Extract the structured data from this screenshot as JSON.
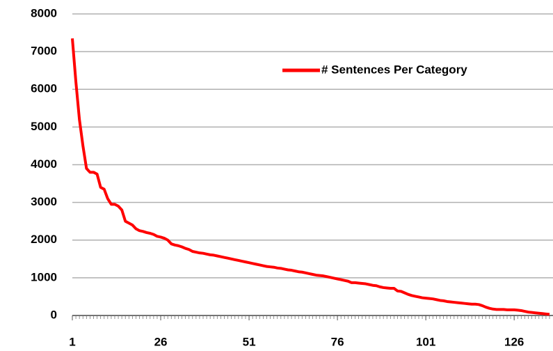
{
  "chart_data": {
    "type": "line",
    "x": [
      1,
      2,
      3,
      4,
      5,
      6,
      7,
      8,
      9,
      10,
      11,
      12,
      13,
      14,
      15,
      16,
      17,
      18,
      19,
      20,
      21,
      22,
      23,
      24,
      25,
      26,
      27,
      28,
      29,
      30,
      31,
      32,
      33,
      34,
      35,
      36,
      37,
      38,
      39,
      40,
      41,
      42,
      43,
      44,
      45,
      46,
      47,
      48,
      49,
      50,
      51,
      52,
      53,
      54,
      55,
      56,
      57,
      58,
      59,
      60,
      61,
      62,
      63,
      64,
      65,
      66,
      67,
      68,
      69,
      70,
      71,
      72,
      73,
      74,
      75,
      76,
      77,
      78,
      79,
      80,
      81,
      82,
      83,
      84,
      85,
      86,
      87,
      88,
      89,
      90,
      91,
      92,
      93,
      94,
      95,
      96,
      97,
      98,
      99,
      100,
      101,
      102,
      103,
      104,
      105,
      106,
      107,
      108,
      109,
      110,
      111,
      112,
      113,
      114,
      115,
      116,
      117,
      118,
      119,
      120,
      121,
      122,
      123,
      124,
      125,
      126,
      127,
      128,
      129,
      130,
      131,
      132,
      133,
      134,
      135,
      136
    ],
    "series": [
      {
        "name": "# Sentences Per Category",
        "color": "#ff0000",
        "values": [
          7350,
          6200,
          5200,
          4500,
          3900,
          3800,
          3800,
          3750,
          3400,
          3350,
          3100,
          2950,
          2950,
          2900,
          2800,
          2500,
          2450,
          2400,
          2300,
          2250,
          2230,
          2200,
          2180,
          2150,
          2100,
          2080,
          2050,
          2000,
          1900,
          1870,
          1850,
          1820,
          1780,
          1750,
          1700,
          1680,
          1660,
          1650,
          1630,
          1610,
          1600,
          1580,
          1560,
          1540,
          1520,
          1500,
          1480,
          1460,
          1440,
          1420,
          1400,
          1380,
          1360,
          1340,
          1320,
          1300,
          1290,
          1280,
          1260,
          1250,
          1230,
          1210,
          1200,
          1180,
          1160,
          1150,
          1130,
          1110,
          1090,
          1070,
          1060,
          1050,
          1030,
          1010,
          990,
          970,
          950,
          930,
          910,
          870,
          870,
          860,
          850,
          840,
          820,
          800,
          790,
          760,
          740,
          730,
          720,
          720,
          650,
          640,
          600,
          560,
          530,
          510,
          490,
          470,
          460,
          450,
          440,
          420,
          400,
          390,
          370,
          360,
          350,
          340,
          330,
          320,
          310,
          300,
          300,
          290,
          260,
          220,
          190,
          170,
          160,
          160,
          160,
          150,
          150,
          150,
          140,
          130,
          110,
          90,
          80,
          70,
          60,
          50,
          40,
          30
        ]
      }
    ],
    "xlim": [
      1,
      136
    ],
    "xticks": [
      1,
      26,
      51,
      76,
      101,
      126
    ],
    "ylim": [
      0,
      8000
    ],
    "yticks": [
      0,
      1000,
      2000,
      3000,
      4000,
      5000,
      6000,
      7000,
      8000
    ],
    "grid": true,
    "legend": "upper right"
  }
}
